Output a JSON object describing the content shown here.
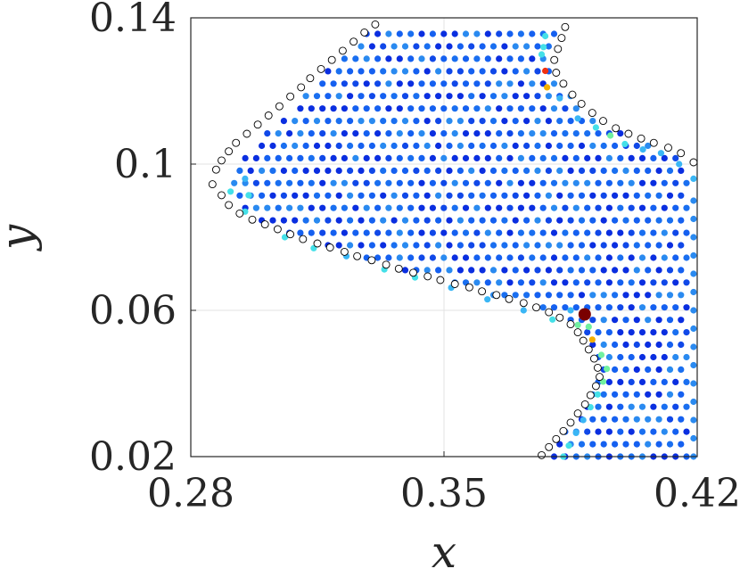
{
  "chart_data": {
    "type": "scatter",
    "title": "",
    "xlabel": "x",
    "ylabel": "y",
    "xlim": [
      0.28,
      0.42
    ],
    "ylim": [
      0.02,
      0.14
    ],
    "xticks": [
      0.28,
      0.35,
      0.42
    ],
    "xtick_labels": [
      "0.28",
      "0.35",
      "0.42"
    ],
    "yticks": [
      0.02,
      0.06,
      0.1,
      0.14
    ],
    "ytick_labels": [
      "0.02",
      "0.06",
      "0.1",
      "0.14"
    ],
    "grid": true,
    "boundary_color": "#000000",
    "interior_colors": [
      "#0a2ee0",
      "#1560f0",
      "#2a8af0",
      "#3ab6f5",
      "#44e0e8",
      "#70f0a0",
      "#e0f030",
      "#f5b000",
      "#f03010"
    ],
    "highlight": {
      "x": 0.3889,
      "y": 0.0589,
      "color": "#7a0000"
    },
    "series": [
      {
        "kind": "boundary",
        "points": [
          [
            0.286,
            0.0945
          ],
          [
            0.287,
            0.0985
          ],
          [
            0.2885,
            0.101
          ],
          [
            0.2905,
            0.1035
          ],
          [
            0.2925,
            0.1058
          ],
          [
            0.2955,
            0.1083
          ],
          [
            0.2985,
            0.1108
          ],
          [
            0.3015,
            0.1133
          ],
          [
            0.3045,
            0.1158
          ],
          [
            0.3075,
            0.1185
          ],
          [
            0.3105,
            0.121
          ],
          [
            0.313,
            0.1235
          ],
          [
            0.316,
            0.126
          ],
          [
            0.319,
            0.1285
          ],
          [
            0.322,
            0.131
          ],
          [
            0.325,
            0.1335
          ],
          [
            0.328,
            0.136
          ],
          [
            0.331,
            0.1382
          ],
          [
            0.3835,
            0.1375
          ],
          [
            0.3825,
            0.1345
          ],
          [
            0.3815,
            0.1315
          ],
          [
            0.3805,
            0.1285
          ],
          [
            0.381,
            0.125
          ],
          [
            0.383,
            0.122
          ],
          [
            0.3855,
            0.119
          ],
          [
            0.388,
            0.1165
          ],
          [
            0.391,
            0.114
          ],
          [
            0.394,
            0.1118
          ],
          [
            0.3975,
            0.1098
          ],
          [
            0.401,
            0.1083
          ],
          [
            0.4045,
            0.107
          ],
          [
            0.408,
            0.1058
          ],
          [
            0.412,
            0.1045
          ],
          [
            0.4155,
            0.103
          ],
          [
            0.419,
            0.1005
          ],
          [
            0.2885,
            0.0915
          ],
          [
            0.2905,
            0.0888
          ],
          [
            0.2935,
            0.0865
          ],
          [
            0.297,
            0.0848
          ],
          [
            0.3005,
            0.0835
          ],
          [
            0.304,
            0.0822
          ],
          [
            0.3075,
            0.0808
          ],
          [
            0.311,
            0.0795
          ],
          [
            0.315,
            0.0783
          ],
          [
            0.3185,
            0.0772
          ],
          [
            0.3225,
            0.076
          ],
          [
            0.326,
            0.0748
          ],
          [
            0.33,
            0.0737
          ],
          [
            0.334,
            0.0725
          ],
          [
            0.3375,
            0.0714
          ],
          [
            0.3415,
            0.0703
          ],
          [
            0.3455,
            0.0693
          ],
          [
            0.349,
            0.0683
          ],
          [
            0.353,
            0.0672
          ],
          [
            0.357,
            0.0663
          ],
          [
            0.3605,
            0.0652
          ],
          [
            0.3645,
            0.0642
          ],
          [
            0.368,
            0.0631
          ],
          [
            0.372,
            0.062
          ],
          [
            0.3755,
            0.0608
          ],
          [
            0.379,
            0.0595
          ],
          [
            0.382,
            0.058
          ],
          [
            0.385,
            0.0562
          ],
          [
            0.387,
            0.054
          ],
          [
            0.3885,
            0.0517
          ],
          [
            0.39,
            0.0493
          ],
          [
            0.3915,
            0.0468
          ],
          [
            0.3925,
            0.0443
          ],
          [
            0.393,
            0.0418
          ],
          [
            0.392,
            0.0393
          ],
          [
            0.3905,
            0.0368
          ],
          [
            0.389,
            0.0343
          ],
          [
            0.387,
            0.0318
          ],
          [
            0.385,
            0.0293
          ],
          [
            0.383,
            0.027
          ],
          [
            0.381,
            0.0248
          ],
          [
            0.379,
            0.0226
          ],
          [
            0.377,
            0.0204
          ]
        ]
      },
      {
        "kind": "interior",
        "points": [
          [
            0.314,
            0.077,
            0.48
          ],
          [
            0.306,
            0.08,
            0.45
          ],
          [
            0.323,
            0.0748,
            0.42
          ],
          [
            0.295,
            0.087,
            0.5
          ],
          [
            0.291,
            0.0925,
            0.46
          ],
          [
            0.3335,
            0.0712,
            0.55
          ],
          [
            0.342,
            0.069,
            0.45
          ],
          [
            0.352,
            0.0662,
            0.4
          ],
          [
            0.362,
            0.063,
            0.42
          ],
          [
            0.372,
            0.06,
            0.4
          ],
          [
            0.38,
            0.0575,
            0.5
          ],
          [
            0.385,
            0.06,
            0.4
          ],
          [
            0.387,
            0.056,
            0.58
          ],
          [
            0.39,
            0.0555,
            0.65
          ],
          [
            0.391,
            0.052,
            0.88
          ],
          [
            0.3935,
            0.0478,
            0.68
          ],
          [
            0.395,
            0.044,
            0.64
          ],
          [
            0.394,
            0.0405,
            0.6
          ],
          [
            0.3925,
            0.037,
            0.52
          ],
          [
            0.3905,
            0.0335,
            0.55
          ],
          [
            0.3885,
            0.03,
            0.42
          ],
          [
            0.3865,
            0.0265,
            0.4
          ],
          [
            0.3845,
            0.023,
            0.45
          ],
          [
            0.383,
            0.02,
            0.52
          ],
          [
            0.378,
            0.135,
            0.52
          ],
          [
            0.3775,
            0.132,
            0.45
          ],
          [
            0.377,
            0.13,
            0.55
          ],
          [
            0.378,
            0.1255,
            0.95
          ],
          [
            0.3785,
            0.121,
            0.85
          ],
          [
            0.382,
            0.118,
            0.35
          ],
          [
            0.387,
            0.1125,
            0.4
          ],
          [
            0.392,
            0.11,
            0.55
          ],
          [
            0.396,
            0.1078,
            0.6
          ],
          [
            0.4,
            0.1055,
            0.45
          ],
          [
            0.405,
            0.104,
            0.4
          ],
          [
            0.41,
            0.103,
            0.32
          ],
          [
            0.415,
            0.1,
            0.36
          ],
          [
            0.419,
            0.096,
            0.4
          ],
          [
            0.419,
            0.09,
            0.3
          ],
          [
            0.419,
            0.085,
            0.3
          ],
          [
            0.419,
            0.08,
            0.28
          ],
          [
            0.419,
            0.075,
            0.3
          ],
          [
            0.419,
            0.07,
            0.28
          ],
          [
            0.419,
            0.065,
            0.22
          ],
          [
            0.419,
            0.06,
            0.3
          ],
          [
            0.419,
            0.055,
            0.22
          ],
          [
            0.419,
            0.05,
            0.2
          ],
          [
            0.419,
            0.045,
            0.22
          ],
          [
            0.419,
            0.04,
            0.28
          ],
          [
            0.419,
            0.035,
            0.2
          ],
          [
            0.419,
            0.03,
            0.22
          ],
          [
            0.419,
            0.025,
            0.2
          ],
          [
            0.419,
            0.02,
            0.22
          ],
          [
            0.295,
            0.096,
            0.4
          ],
          [
            0.296,
            0.0915,
            0.45
          ]
        ]
      }
    ]
  }
}
